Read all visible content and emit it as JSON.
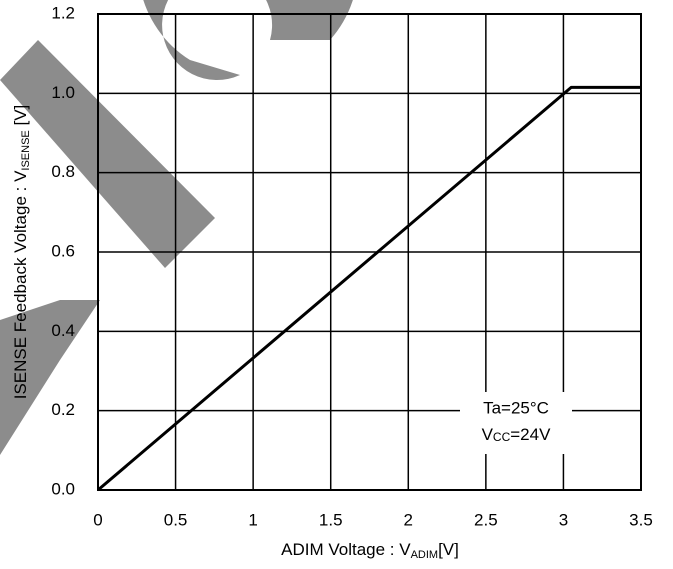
{
  "chart_data": {
    "type": "line",
    "x_label": {
      "text": "ADIM Voltage : V",
      "sub": "ADIM",
      "suffix": "[V]"
    },
    "y_label": {
      "text": "ISENSE Feedback Voltage : V",
      "sub": "ISENSE",
      "suffix": " [V]"
    },
    "annotation": {
      "line1": "Ta=25°C",
      "line2": {
        "text": "V",
        "sub": "CC",
        "suffix": "=24V"
      }
    },
    "x": [
      0,
      3.05,
      3.5
    ],
    "series": [
      {
        "color": "#000000",
        "values": [
          0,
          1.015,
          1.015
        ]
      }
    ],
    "xlim": [
      0,
      3.5
    ],
    "xticks": [
      0,
      0.5,
      1,
      1.5,
      2,
      2.5,
      3,
      3.5
    ],
    "ylim": [
      0,
      1.2
    ],
    "yticks": [
      {
        "value": 0,
        "label": "0.0"
      },
      0.2,
      0.4,
      0.6,
      0.8,
      {
        "value": 1,
        "label": "1.0"
      },
      1.2
    ],
    "grid": true
  }
}
